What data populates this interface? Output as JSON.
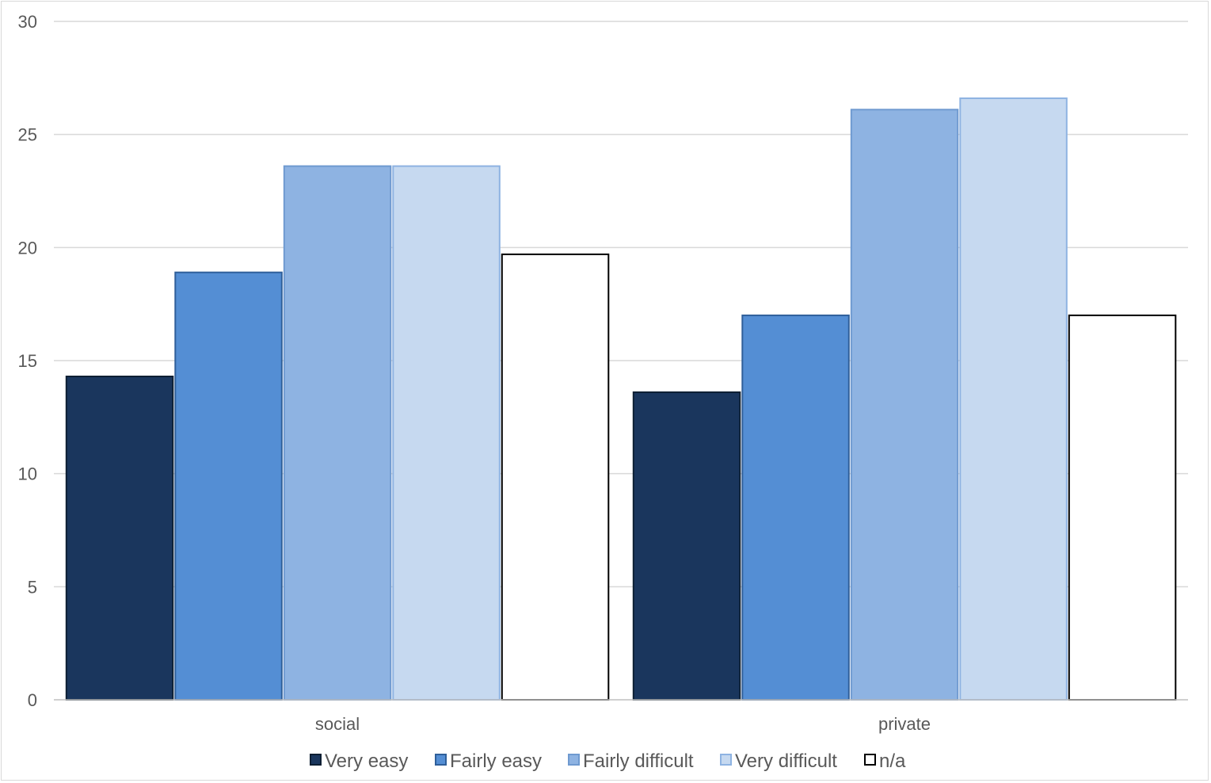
{
  "chart_data": {
    "type": "bar",
    "categories": [
      "social",
      "private"
    ],
    "series": [
      {
        "name": "Very easy",
        "color": "#1a365d",
        "stroke": "#0d1f33",
        "values": [
          14.3,
          13.6
        ]
      },
      {
        "name": "Fairly easy",
        "color": "#548ed4",
        "stroke": "#2f5f9a",
        "values": [
          18.9,
          17.0
        ]
      },
      {
        "name": "Fairly difficult",
        "color": "#8eb3e2",
        "stroke": "#6f9ad0",
        "values": [
          23.6,
          26.1
        ]
      },
      {
        "name": "Very difficult",
        "color": "#c6d9f0",
        "stroke": "#8eb3e2",
        "values": [
          23.6,
          26.6
        ]
      },
      {
        "name": "n/a",
        "color": "#ffffff",
        "stroke": "#000000",
        "values": [
          19.7,
          17.0
        ]
      }
    ],
    "ylim": [
      0,
      30
    ],
    "yticks": [
      0,
      5,
      10,
      15,
      20,
      25,
      30
    ],
    "grid": true,
    "legend_position": "bottom"
  }
}
